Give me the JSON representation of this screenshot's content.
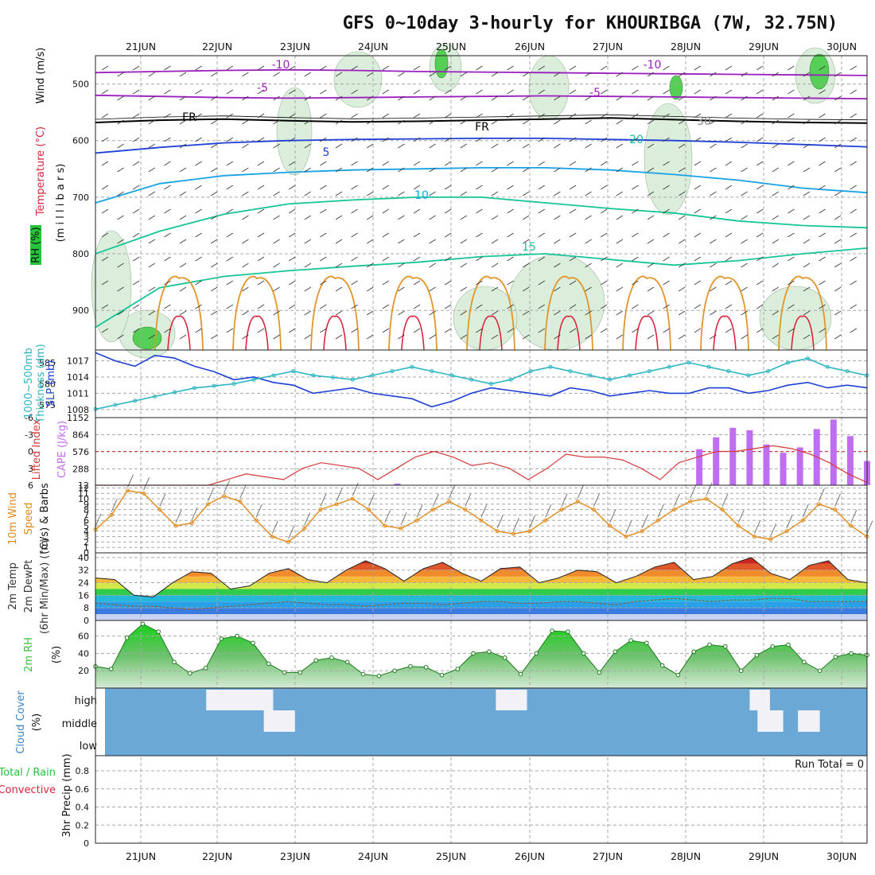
{
  "title": "GFS 0~10day 3-hourly for KHOURIBGA (7W, 32.75N)",
  "dates": [
    "21JUN",
    "22JUN",
    "23JUN",
    "24JUN",
    "25JUN",
    "26JUN",
    "27JUN",
    "28JUN",
    "29JUN",
    "30JUN"
  ],
  "run_total": "Run Total = 0",
  "colors": {
    "purple": "#9b1fbf",
    "black": "#000000",
    "blue": "#1f3fd6",
    "cyan": "#18a2e6",
    "teal": "#16c49a",
    "orange": "#e2952a",
    "red": "#d8243c",
    "green": "#25c43a",
    "slp": "#1f3fd6",
    "thick": "#2bb6c2",
    "li": "#d43a3a",
    "cape": "#c06ef0",
    "wind": "#e28a1a",
    "rh_fill": "#3bbf3b",
    "cloud": "#6ca8d6",
    "dew": "#8a5a3a"
  },
  "labels": {
    "upper": [
      {
        "text": "Wind (m/s)",
        "color": "#111111"
      },
      {
        "text": "Temperature (°C)",
        "color": "#d8243c"
      },
      {
        "text": "RH (%)",
        "color": "#111111"
      }
    ],
    "upper_right": "(m i l l i b a r s)",
    "pressure_panel": [
      "1000~500mb",
      "Thickness (dm)",
      "SLP (mb)"
    ],
    "cape_panel": [
      "Lifted Index",
      "CAPE (J/kg)"
    ],
    "wind_panel": [
      "10m Wind",
      "Speed",
      "(m/s) & Barbs"
    ],
    "temp_panel": [
      "2m Temp",
      "2m DewPt",
      "(6hr Min/Max) (°C)"
    ],
    "rh_panel": [
      "2m RH",
      "(%)"
    ],
    "cloud_panel": [
      "Cloud Cover",
      "(%)"
    ],
    "precip_panel": [
      "Total / Rain",
      "Convective",
      "3hr Precip (mm)"
    ]
  },
  "chart_data": [
    {
      "type": "heatmap",
      "name": "cross_section",
      "yaxis": {
        "label": "millibars",
        "ticks": [
          500,
          600,
          700,
          800,
          900
        ],
        "range": [
          450,
          970
        ]
      },
      "contour_labels": [
        {
          "text": "-10",
          "color": "#9b1fbf"
        },
        {
          "text": "-5",
          "color": "#9b1fbf"
        },
        {
          "text": "FR",
          "color": "#000000"
        },
        {
          "text": "5",
          "color": "#1f3fd6"
        },
        {
          "text": "10",
          "color": "#18a2e6"
        },
        {
          "text": "15",
          "color": "#16c49a"
        },
        {
          "text": "20",
          "color": "#16c49a"
        },
        {
          "text": "30",
          "color": "#888888"
        }
      ],
      "isotherms": [
        {
          "name": "-10",
          "color": "#9b1fbf",
          "levels": [
            480,
            478,
            476,
            475,
            476,
            478,
            479,
            480,
            481,
            482,
            483,
            484,
            485
          ]
        },
        {
          "name": "-5",
          "color": "#9b1fbf",
          "levels": [
            520,
            522,
            524,
            525,
            524,
            523,
            522,
            521,
            522,
            523,
            524,
            525,
            526
          ]
        },
        {
          "name": "FR",
          "color": "#000000",
          "levels": [
            568,
            564,
            562,
            565,
            567,
            566,
            564,
            562,
            560,
            563,
            566,
            568,
            569
          ]
        },
        {
          "name": "5",
          "color": "#1f3fd6",
          "levels": [
            622,
            612,
            604,
            600,
            598,
            597,
            596,
            596,
            598,
            600,
            603,
            607,
            611
          ]
        },
        {
          "name": "10",
          "color": "#18a2e6",
          "levels": [
            710,
            676,
            662,
            656,
            652,
            650,
            648,
            648,
            652,
            660,
            670,
            684,
            692
          ]
        },
        {
          "name": "15",
          "color": "#16c49a",
          "levels": [
            800,
            760,
            730,
            712,
            705,
            700,
            700,
            710,
            720,
            728,
            742,
            750,
            754
          ]
        },
        {
          "name": "20",
          "color": "#16c49a",
          "levels": [
            930,
            860,
            840,
            830,
            822,
            815,
            805,
            800,
            810,
            820,
            812,
            800,
            790
          ]
        }
      ]
    },
    {
      "type": "line",
      "name": "pressure",
      "left_axis": {
        "label": "1000~500mb Thickness (dm)",
        "ticks": [
          575,
          580,
          585
        ],
        "range": [
          572,
          588
        ]
      },
      "right_axis": {
        "label": "SLP (mb)",
        "ticks": [
          1008,
          1011,
          1014,
          1017
        ],
        "range": [
          1006.5,
          1019
        ]
      },
      "series": [
        {
          "name": "SLP",
          "points": [
            1018.5,
            1017,
            1016,
            1018,
            1017.5,
            1016,
            1015,
            1013.5,
            1014,
            1013,
            1012.5,
            1011,
            1011.5,
            1012,
            1011,
            1010.5,
            1010,
            1008.5,
            1009.5,
            1011,
            1012,
            1011.5,
            1011,
            1010.5,
            1012,
            1011.5,
            1010.5,
            1011,
            1011.5,
            1011,
            1011,
            1012,
            1012,
            1011,
            1011.5,
            1012.5,
            1013,
            1012,
            1012.5,
            1012
          ]
        },
        {
          "name": "Thickness",
          "points": [
            574,
            575,
            576,
            577,
            578,
            579,
            579.5,
            580,
            581,
            582,
            583,
            582,
            581.5,
            581,
            582,
            583,
            584,
            583,
            582,
            581,
            580,
            581,
            583,
            584,
            583,
            582,
            581,
            582,
            583,
            584,
            585,
            584,
            583,
            582,
            583,
            585,
            586,
            584,
            583,
            582
          ]
        }
      ]
    },
    {
      "type": "bar",
      "name": "cape_li",
      "left_axis": {
        "label": "Lifted Index",
        "ticks": [
          -6,
          -3,
          0,
          3,
          6
        ],
        "range": [
          -6,
          6
        ]
      },
      "right_axis": {
        "label": "CAPE (J/kg)",
        "ticks": [
          1152,
          864,
          576,
          288,
          12
        ],
        "range": [
          12,
          1152
        ]
      },
      "series": [
        {
          "name": "Lifted Index",
          "points": [
            6,
            6,
            6,
            6,
            6,
            6,
            6,
            5,
            4,
            4.5,
            5,
            3,
            2,
            2.5,
            3,
            5,
            3,
            1,
            0,
            1,
            2.5,
            2,
            3,
            5,
            3,
            0.5,
            1,
            1,
            1.5,
            3,
            5,
            2,
            1,
            0,
            0,
            -0.5,
            -1,
            -0.5,
            0.5,
            2,
            4,
            5.5
          ]
        },
        {
          "name": "CAPE",
          "points": [
            0,
            0,
            0,
            0,
            0,
            0,
            0,
            0,
            0,
            0,
            0,
            0,
            0,
            0,
            0,
            0,
            0,
            0,
            40,
            0,
            0,
            0,
            0,
            0,
            0,
            0,
            0,
            0,
            0,
            0,
            0,
            0,
            0,
            0,
            0,
            0,
            620,
            820,
            980,
            940,
            700,
            560,
            650,
            960,
            1120,
            840,
            420
          ]
        }
      ]
    },
    {
      "type": "line",
      "name": "wind10m",
      "yaxis": {
        "label": "(m/s)",
        "ticks": [
          0,
          1,
          2,
          3,
          4,
          5,
          6,
          7,
          8,
          9,
          10,
          11,
          12
        ],
        "range": [
          0,
          12.5
        ]
      },
      "series": [
        {
          "name": "Speed",
          "points": [
            4.3,
            7,
            11.5,
            11,
            8,
            5,
            5.5,
            9,
            10.5,
            9.5,
            6,
            3,
            2,
            4.5,
            8,
            9,
            10,
            8,
            5,
            4.5,
            6,
            8,
            9.5,
            8,
            6,
            4,
            3.5,
            4,
            6,
            8,
            9.5,
            8,
            5,
            3,
            4,
            6,
            8,
            9.5,
            10,
            8,
            5,
            3,
            2.5,
            4,
            6,
            9,
            8,
            5,
            3
          ]
        }
      ]
    },
    {
      "type": "area",
      "name": "temp2m",
      "yaxis": {
        "label": "(°C)",
        "ticks": [
          0,
          8,
          16,
          24,
          32,
          40
        ],
        "range": [
          0,
          43
        ]
      },
      "series": [
        {
          "name": "2m Temp",
          "points": [
            27,
            26,
            16,
            15,
            24,
            31,
            30,
            20,
            22,
            30,
            33,
            26,
            24,
            32,
            38,
            33,
            25,
            33,
            37,
            30,
            25,
            33,
            34,
            24,
            27,
            32,
            31,
            24,
            28,
            34,
            37,
            26,
            28,
            36,
            40,
            30,
            26,
            35,
            38,
            26,
            24
          ]
        },
        {
          "name": "2m DewPt",
          "points": [
            11,
            10,
            9,
            9,
            8,
            7,
            8,
            9,
            10,
            11,
            12,
            11,
            10,
            10,
            9,
            10,
            11,
            11,
            10,
            11,
            12,
            12,
            11,
            11,
            12,
            12,
            11,
            10,
            12,
            13,
            14,
            13,
            12,
            13,
            13,
            14,
            14,
            12,
            12,
            12,
            12
          ]
        }
      ]
    },
    {
      "type": "area",
      "name": "rh2m",
      "yaxis": {
        "label": "(%)",
        "ticks": [
          20,
          40,
          60
        ],
        "range": [
          0,
          78
        ]
      },
      "series": [
        {
          "name": "2m RH",
          "points": [
            25,
            22,
            58,
            74,
            65,
            30,
            17,
            23,
            57,
            60,
            52,
            28,
            18,
            18,
            32,
            35,
            30,
            16,
            14,
            20,
            25,
            24,
            15,
            22,
            40,
            42,
            35,
            16,
            40,
            66,
            65,
            40,
            18,
            42,
            55,
            52,
            26,
            15,
            42,
            50,
            48,
            20,
            38,
            48,
            50,
            30,
            20,
            36,
            40,
            38
          ]
        }
      ]
    },
    {
      "type": "heatmap",
      "name": "cloud",
      "yaxis": {
        "label": "Cloud Cover (%)",
        "ticks": [
          "high",
          "middle",
          "low"
        ]
      },
      "gaps": [
        {
          "row": "high",
          "from": 1.84,
          "to": 2.7
        },
        {
          "row": "high",
          "from": 5.56,
          "to": 5.96
        },
        {
          "row": "high",
          "from": 8.82,
          "to": 9.08
        },
        {
          "row": "middle",
          "from": 2.58,
          "to": 2.98
        },
        {
          "row": "middle",
          "from": 8.92,
          "to": 9.25
        },
        {
          "row": "middle",
          "from": 9.44,
          "to": 9.72
        }
      ]
    },
    {
      "type": "bar",
      "name": "precip3h",
      "yaxis": {
        "label": "3hr Precip (mm)",
        "ticks": [
          0,
          0.2,
          0.4,
          0.6,
          0.8
        ],
        "range": [
          0,
          0.95
        ]
      },
      "series": [
        {
          "name": "Total / Rain",
          "points": []
        },
        {
          "name": "Convective",
          "points": []
        }
      ]
    }
  ]
}
